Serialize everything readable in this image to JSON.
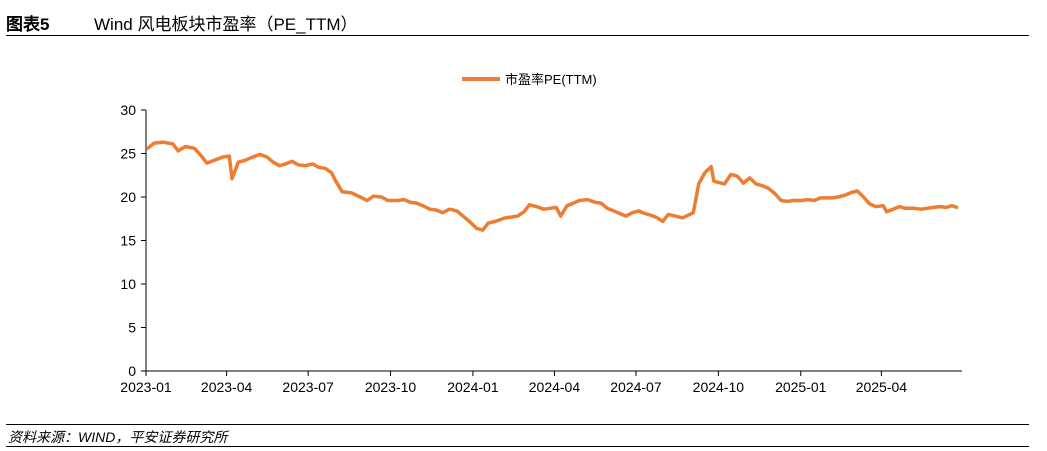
{
  "header": {
    "label": "图表5",
    "title": "Wind 风电板块市盈率（PE_TTM）"
  },
  "source": "资料来源：WIND，平安证券研究所",
  "chart_data": {
    "type": "line",
    "title": "",
    "xlabel": "",
    "ylabel": "",
    "ylim": [
      0,
      30
    ],
    "yticks": [
      "0",
      "5",
      "10",
      "15",
      "20",
      "25",
      "30"
    ],
    "xlim": [
      "2023-01-01",
      "2025-06-30"
    ],
    "xticks": [
      {
        "date": "2023-01-01",
        "label": "2023-01"
      },
      {
        "date": "2023-04-01",
        "label": "2023-04"
      },
      {
        "date": "2023-07-01",
        "label": "2023-07"
      },
      {
        "date": "2023-10-01",
        "label": "2023-10"
      },
      {
        "date": "2024-01-01",
        "label": "2024-01"
      },
      {
        "date": "2024-04-01",
        "label": "2024-04"
      },
      {
        "date": "2024-07-01",
        "label": "2024-07"
      },
      {
        "date": "2024-10-01",
        "label": "2024-10"
      },
      {
        "date": "2025-01-01",
        "label": "2025-01"
      },
      {
        "date": "2025-04-01",
        "label": "2025-04"
      }
    ],
    "legend_position": "top-center",
    "grid": false,
    "series": [
      {
        "name": "市盈率PE(TTM)",
        "color": "#ED7D31",
        "points": [
          [
            "2023-01-03",
            25.6
          ],
          [
            "2023-01-10",
            26.2
          ],
          [
            "2023-01-20",
            26.3
          ],
          [
            "2023-01-31",
            26.1
          ],
          [
            "2023-02-06",
            25.3
          ],
          [
            "2023-02-14",
            25.8
          ],
          [
            "2023-02-24",
            25.6
          ],
          [
            "2023-03-03",
            24.8
          ],
          [
            "2023-03-10",
            23.9
          ],
          [
            "2023-03-20",
            24.3
          ],
          [
            "2023-03-28",
            24.6
          ],
          [
            "2023-04-04",
            24.7
          ],
          [
            "2023-04-07",
            22.1
          ],
          [
            "2023-04-14",
            24.0
          ],
          [
            "2023-04-21",
            24.2
          ],
          [
            "2023-04-28",
            24.5
          ],
          [
            "2023-05-08",
            24.9
          ],
          [
            "2023-05-16",
            24.6
          ],
          [
            "2023-05-23",
            24.0
          ],
          [
            "2023-05-30",
            23.6
          ],
          [
            "2023-06-06",
            23.8
          ],
          [
            "2023-06-13",
            24.1
          ],
          [
            "2023-06-20",
            23.7
          ],
          [
            "2023-06-28",
            23.6
          ],
          [
            "2023-07-06",
            23.8
          ],
          [
            "2023-07-13",
            23.4
          ],
          [
            "2023-07-20",
            23.3
          ],
          [
            "2023-07-27",
            22.8
          ],
          [
            "2023-08-01",
            21.8
          ],
          [
            "2023-08-08",
            20.6
          ],
          [
            "2023-08-18",
            20.5
          ],
          [
            "2023-08-28",
            20.0
          ],
          [
            "2023-09-05",
            19.6
          ],
          [
            "2023-09-12",
            20.1
          ],
          [
            "2023-09-21",
            20.0
          ],
          [
            "2023-09-28",
            19.6
          ],
          [
            "2023-10-09",
            19.6
          ],
          [
            "2023-10-16",
            19.7
          ],
          [
            "2023-10-23",
            19.4
          ],
          [
            "2023-10-30",
            19.3
          ],
          [
            "2023-11-06",
            19.0
          ],
          [
            "2023-11-14",
            18.6
          ],
          [
            "2023-11-21",
            18.5
          ],
          [
            "2023-11-28",
            18.2
          ],
          [
            "2023-12-06",
            18.6
          ],
          [
            "2023-12-14",
            18.4
          ],
          [
            "2023-12-21",
            17.8
          ],
          [
            "2023-12-28",
            17.2
          ],
          [
            "2024-01-05",
            16.4
          ],
          [
            "2024-01-12",
            16.2
          ],
          [
            "2024-01-18",
            17.0
          ],
          [
            "2024-01-26",
            17.2
          ],
          [
            "2024-02-06",
            17.6
          ],
          [
            "2024-02-20",
            17.8
          ],
          [
            "2024-02-27",
            18.3
          ],
          [
            "2024-03-04",
            19.1
          ],
          [
            "2024-03-12",
            18.9
          ],
          [
            "2024-03-20",
            18.6
          ],
          [
            "2024-03-27",
            18.7
          ],
          [
            "2024-04-03",
            18.8
          ],
          [
            "2024-04-08",
            17.8
          ],
          [
            "2024-04-15",
            19.0
          ],
          [
            "2024-04-22",
            19.3
          ],
          [
            "2024-04-29",
            19.6
          ],
          [
            "2024-05-08",
            19.7
          ],
          [
            "2024-05-16",
            19.4
          ],
          [
            "2024-05-23",
            19.3
          ],
          [
            "2024-05-30",
            18.7
          ],
          [
            "2024-06-06",
            18.4
          ],
          [
            "2024-06-13",
            18.1
          ],
          [
            "2024-06-20",
            17.8
          ],
          [
            "2024-06-27",
            18.2
          ],
          [
            "2024-07-04",
            18.4
          ],
          [
            "2024-07-11",
            18.1
          ],
          [
            "2024-07-18",
            17.9
          ],
          [
            "2024-07-25",
            17.6
          ],
          [
            "2024-07-31",
            17.2
          ],
          [
            "2024-08-06",
            18.0
          ],
          [
            "2024-08-14",
            17.8
          ],
          [
            "2024-08-22",
            17.6
          ],
          [
            "2024-08-28",
            17.9
          ],
          [
            "2024-09-03",
            18.2
          ],
          [
            "2024-09-09",
            21.5
          ],
          [
            "2024-09-16",
            22.8
          ],
          [
            "2024-09-23",
            23.5
          ],
          [
            "2024-09-26",
            21.8
          ],
          [
            "2024-10-08",
            21.5
          ],
          [
            "2024-10-15",
            22.6
          ],
          [
            "2024-10-22",
            22.4
          ],
          [
            "2024-10-29",
            21.6
          ],
          [
            "2024-11-05",
            22.2
          ],
          [
            "2024-11-12",
            21.5
          ],
          [
            "2024-11-19",
            21.3
          ],
          [
            "2024-11-26",
            21.0
          ],
          [
            "2024-12-03",
            20.4
          ],
          [
            "2024-12-10",
            19.6
          ],
          [
            "2024-12-17",
            19.5
          ],
          [
            "2024-12-24",
            19.6
          ],
          [
            "2025-01-02",
            19.6
          ],
          [
            "2025-01-09",
            19.7
          ],
          [
            "2025-01-16",
            19.6
          ],
          [
            "2025-01-23",
            19.9
          ],
          [
            "2025-02-05",
            19.9
          ],
          [
            "2025-02-12",
            20.0
          ],
          [
            "2025-02-19",
            20.2
          ],
          [
            "2025-02-26",
            20.5
          ],
          [
            "2025-03-05",
            20.7
          ],
          [
            "2025-03-12",
            20.0
          ],
          [
            "2025-03-19",
            19.2
          ],
          [
            "2025-03-26",
            18.9
          ],
          [
            "2025-04-03",
            19.0
          ],
          [
            "2025-04-07",
            18.3
          ],
          [
            "2025-04-14",
            18.6
          ],
          [
            "2025-04-21",
            18.9
          ],
          [
            "2025-04-28",
            18.7
          ],
          [
            "2025-05-08",
            18.7
          ],
          [
            "2025-05-15",
            18.6
          ],
          [
            "2025-05-22",
            18.7
          ],
          [
            "2025-05-29",
            18.8
          ],
          [
            "2025-06-05",
            18.9
          ],
          [
            "2025-06-12",
            18.8
          ],
          [
            "2025-06-19",
            19.0
          ],
          [
            "2025-06-24",
            18.8
          ]
        ]
      }
    ]
  }
}
